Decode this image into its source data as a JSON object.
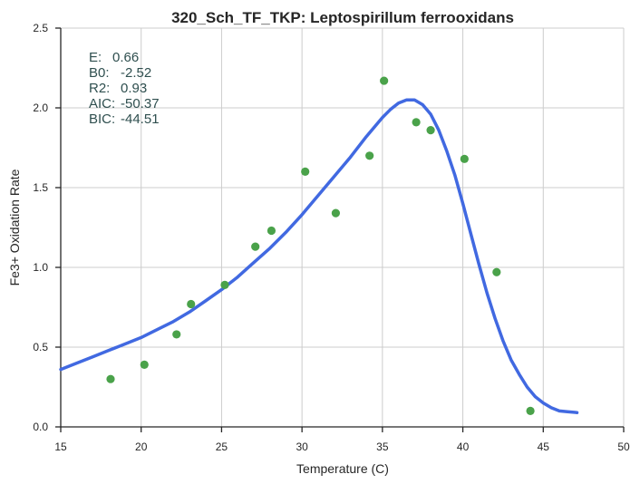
{
  "chart_data": {
    "type": "scatter",
    "title": "320_Sch_TF_TKP: Leptospirillum ferrooxidans",
    "xlabel": "Temperature (C)",
    "ylabel": "Fe3+ Oxidation Rate",
    "xlim": [
      15,
      50
    ],
    "ylim": [
      0.0,
      2.5
    ],
    "xticks": [
      15,
      20,
      25,
      30,
      35,
      40,
      45,
      50
    ],
    "yticks": [
      0.0,
      0.5,
      1.0,
      1.5,
      2.0,
      2.5
    ],
    "xtick_labels": [
      "15",
      "20",
      "25",
      "30",
      "35",
      "40",
      "45",
      "50"
    ],
    "ytick_labels": [
      "0.0",
      "0.5",
      "1.0",
      "1.5",
      "2.0",
      "2.5"
    ],
    "grid": true,
    "series": [
      {
        "kind": "points",
        "color": "#4aa24a",
        "x": [
          18.1,
          20.2,
          22.2,
          23.1,
          25.2,
          27.1,
          28.1,
          30.2,
          32.1,
          34.2,
          35.1,
          37.1,
          38.0,
          40.1,
          42.1,
          44.2
        ],
        "y": [
          0.3,
          0.39,
          0.58,
          0.77,
          0.89,
          1.13,
          1.23,
          1.6,
          1.34,
          1.7,
          2.17,
          1.91,
          1.86,
          1.68,
          0.97,
          0.1
        ]
      },
      {
        "kind": "curve",
        "color": "#4169e1",
        "x": [
          15,
          16,
          17,
          18,
          19,
          20,
          21,
          22,
          23,
          24,
          25,
          26,
          27,
          28,
          29,
          30,
          31,
          32,
          33,
          34,
          35,
          35.5,
          36,
          36.5,
          37,
          37.5,
          38,
          38.5,
          39,
          39.5,
          40,
          40.5,
          41,
          41.5,
          42,
          42.5,
          43,
          43.5,
          44,
          44.5,
          45,
          45.5,
          46,
          46.5,
          47.1
        ],
        "y": [
          0.36,
          0.4,
          0.44,
          0.48,
          0.52,
          0.56,
          0.61,
          0.66,
          0.72,
          0.79,
          0.86,
          0.94,
          1.03,
          1.12,
          1.22,
          1.33,
          1.45,
          1.57,
          1.69,
          1.82,
          1.94,
          1.99,
          2.03,
          2.05,
          2.05,
          2.02,
          1.96,
          1.86,
          1.73,
          1.58,
          1.4,
          1.21,
          1.02,
          0.84,
          0.68,
          0.54,
          0.42,
          0.33,
          0.25,
          0.19,
          0.15,
          0.12,
          0.1,
          0.095,
          0.09
        ]
      }
    ],
    "annotations": [
      {
        "label": "E:",
        "value": "0.66"
      },
      {
        "label": "B0:",
        "value": "-2.52"
      },
      {
        "label": "R2:",
        "value": "0.93"
      },
      {
        "label": "AIC:",
        "value": "-50.37"
      },
      {
        "label": "BIC:",
        "value": "-44.51"
      }
    ]
  }
}
